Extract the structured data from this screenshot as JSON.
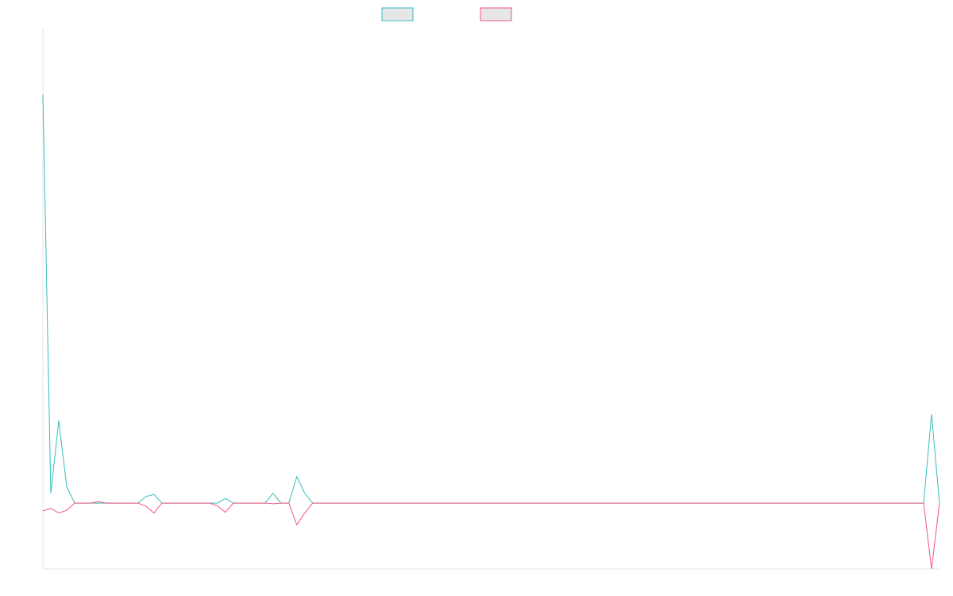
{
  "chart_data": {
    "type": "line",
    "title": "",
    "xlabel": "",
    "ylabel": "",
    "grid": false,
    "legend_position": "top-center",
    "legend_fill": "#e6e6e6",
    "axis_color": "#e5e5e5",
    "y_range": [
      -10,
      72
    ],
    "x": [
      0,
      1,
      2,
      3,
      4,
      5,
      6,
      7,
      8,
      9,
      10,
      11,
      12,
      13,
      14,
      15,
      16,
      17,
      18,
      19,
      20,
      21,
      22,
      23,
      24,
      25,
      26,
      27,
      28,
      29,
      30,
      31,
      32,
      33,
      34,
      35,
      36,
      37,
      38,
      39,
      40,
      41,
      42,
      43,
      44,
      45,
      46,
      47,
      48,
      49,
      50,
      51,
      52,
      53,
      54,
      55,
      56,
      57,
      58,
      59,
      60,
      61,
      62,
      63,
      64,
      65,
      66,
      67,
      68,
      69,
      70,
      71,
      72,
      73,
      74,
      75,
      76,
      77,
      78,
      79,
      80,
      81,
      82,
      83,
      84,
      85,
      86,
      87,
      88,
      89,
      90,
      91,
      92,
      93,
      94,
      95,
      96,
      97,
      98,
      99,
      100,
      101,
      102,
      103,
      104,
      105,
      106,
      107,
      108,
      109,
      110,
      111,
      112,
      113
    ],
    "series": [
      {
        "color": "#36bdbd",
        "values": [
          62,
          1.5,
          12.5,
          2.5,
          0,
          0,
          0,
          0,
          0,
          0,
          0,
          0,
          0,
          1,
          1.3,
          0,
          0,
          0,
          0,
          0,
          0,
          0,
          0,
          0.7,
          0,
          0,
          0,
          0,
          0,
          1.5,
          0,
          0,
          4,
          1.5,
          0,
          0,
          0,
          0,
          0,
          0,
          0,
          0,
          0,
          0,
          0,
          0,
          0,
          0,
          0,
          0,
          0,
          0,
          0,
          0,
          0,
          0,
          0,
          0,
          0,
          0,
          0,
          0,
          0,
          0,
          0,
          0,
          0,
          0,
          0,
          0,
          0,
          0,
          0,
          0,
          0,
          0,
          0,
          0,
          0,
          0,
          0,
          0,
          0,
          0,
          0,
          0,
          0,
          0,
          0,
          0,
          0,
          0,
          0,
          0,
          0,
          0,
          0,
          0,
          0,
          0,
          0,
          0,
          0,
          0,
          0,
          0,
          0,
          0,
          0,
          0,
          0,
          0,
          13.5,
          0
        ]
      },
      {
        "color": "#f0547c",
        "values": [
          -1.2,
          -0.8,
          -1.5,
          -1.1,
          0,
          0,
          0,
          0.2,
          0,
          0,
          0,
          0,
          0,
          -0.5,
          -1.5,
          0,
          0,
          0,
          0,
          0,
          0,
          0,
          -0.4,
          -1.4,
          0,
          0,
          0,
          0,
          0,
          -0.1,
          0,
          0,
          -3.3,
          -1.5,
          0,
          0,
          0,
          0,
          0,
          0,
          0,
          0,
          0,
          0,
          0,
          0,
          0,
          0,
          0,
          0,
          0,
          0,
          0,
          0,
          0,
          0,
          0,
          0,
          0,
          0,
          0,
          0,
          0,
          0,
          0,
          0,
          0,
          0,
          0,
          0,
          0,
          0,
          0,
          0,
          0,
          0,
          0,
          0,
          0,
          0,
          0,
          0,
          0,
          0,
          0,
          0,
          0,
          0,
          0,
          0,
          0,
          0,
          0,
          0,
          0,
          0,
          0,
          0,
          0,
          0,
          0,
          0,
          0,
          0,
          0,
          0,
          0,
          0,
          0,
          0,
          0,
          0,
          -10,
          0
        ]
      }
    ]
  }
}
